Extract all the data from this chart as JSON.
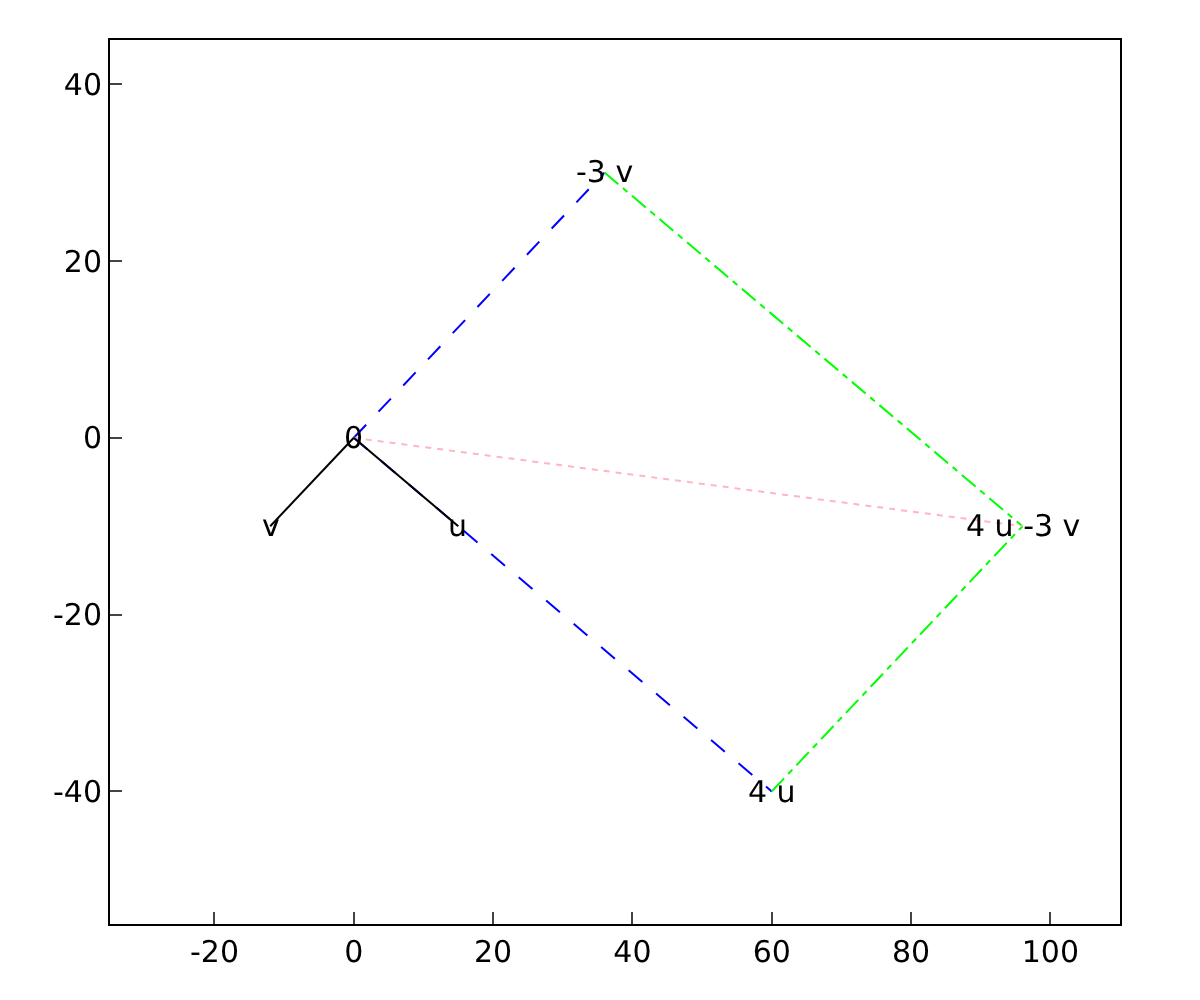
{
  "chart_data": {
    "type": "line",
    "xlim": [
      -35,
      110
    ],
    "ylim": [
      -55,
      45
    ],
    "xticks": [
      -20,
      0,
      20,
      40,
      60,
      80,
      100
    ],
    "yticks": [
      -40,
      -20,
      0,
      20,
      40
    ],
    "grid": false,
    "series": [
      {
        "x": [
          0,
          60
        ],
        "values": [
          0,
          -40
        ],
        "color": "#0000ff",
        "line_style": "dashed"
      },
      {
        "x": [
          0,
          36
        ],
        "values": [
          0,
          30
        ],
        "color": "#0000ff",
        "line_style": "dashed"
      },
      {
        "x": [
          36,
          96
        ],
        "values": [
          30,
          -10
        ],
        "color": "#00ff00",
        "line_style": "dashdot"
      },
      {
        "x": [
          60,
          96
        ],
        "values": [
          -40,
          -10
        ],
        "color": "#00ff00",
        "line_style": "dashdot"
      },
      {
        "x": [
          0,
          96
        ],
        "values": [
          0,
          -10
        ],
        "color": "#ffb6c1",
        "line_style": "dotted"
      },
      {
        "x": [
          0,
          15
        ],
        "values": [
          0,
          -10
        ],
        "color": "#000000",
        "line_style": "solid"
      },
      {
        "x": [
          0,
          -12
        ],
        "values": [
          0,
          -10
        ],
        "color": "#000000",
        "line_style": "solid"
      }
    ],
    "annotations": [
      {
        "text": "0",
        "x": 0,
        "y": 0
      },
      {
        "text": "u",
        "x": 15,
        "y": -10
      },
      {
        "text": "v",
        "x": -12,
        "y": -10
      },
      {
        "text": "4 u",
        "x": 60,
        "y": -40
      },
      {
        "text": "-3 v",
        "x": 36,
        "y": 30
      },
      {
        "text": "4 u -3 v",
        "x": 96,
        "y": -10
      }
    ]
  }
}
